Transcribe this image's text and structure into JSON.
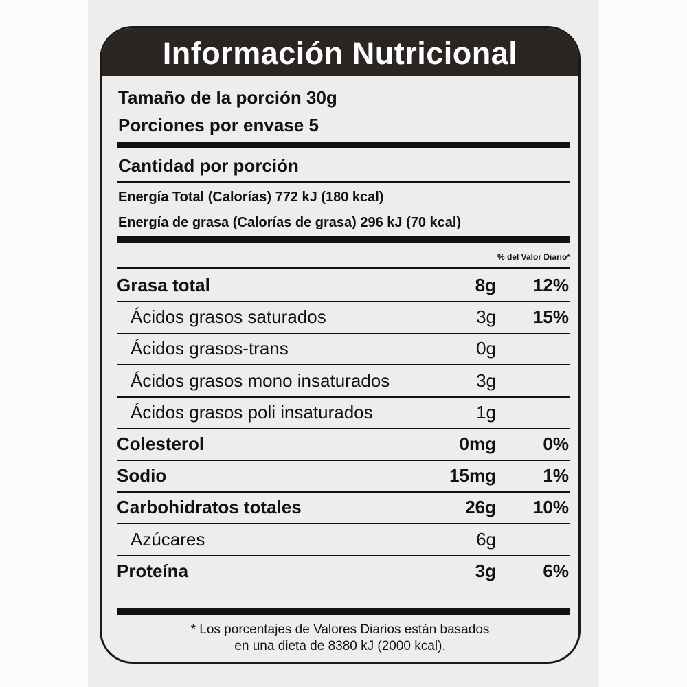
{
  "title": "Información Nutricional",
  "serving_size": "Tamaño de la porción 30g",
  "servings_per_container": "Porciones por envase 5",
  "amount_per_serving": "Cantidad por porción",
  "energy_total": "Energía Total (Calorías) 772 kJ (180 kcal)",
  "energy_fat": "Energía de grasa (Calorías de grasa) 296 kJ (70 kcal)",
  "daily_value_header": "% del Valor Diario*",
  "nutrients": [
    {
      "name": "Grasa total",
      "amount": "8g",
      "dv": "12%",
      "level": "main"
    },
    {
      "name": "Ácidos grasos saturados",
      "amount": "3g",
      "dv": "15%",
      "level": "sub"
    },
    {
      "name": "Ácidos grasos-trans",
      "amount": "0g",
      "dv": "",
      "level": "sub"
    },
    {
      "name": "Ácidos grasos mono insaturados",
      "amount": "3g",
      "dv": "",
      "level": "sub"
    },
    {
      "name": "Ácidos grasos poli insaturados",
      "amount": "1g",
      "dv": "",
      "level": "sub"
    },
    {
      "name": "Colesterol",
      "amount": "0mg",
      "dv": "0%",
      "level": "main"
    },
    {
      "name": "Sodio",
      "amount": "15mg",
      "dv": "1%",
      "level": "main"
    },
    {
      "name": "Carbohidratos totales",
      "amount": "26g",
      "dv": "10%",
      "level": "main"
    },
    {
      "name": "Azúcares",
      "amount": "6g",
      "dv": "",
      "level": "sub"
    },
    {
      "name": "Proteína",
      "amount": "3g",
      "dv": "6%",
      "level": "main"
    }
  ],
  "footnote_line1": "* Los porcentajes de Valores Diarios están basados",
  "footnote_line2": "en una dieta de 8380 kJ (2000 kcal)."
}
